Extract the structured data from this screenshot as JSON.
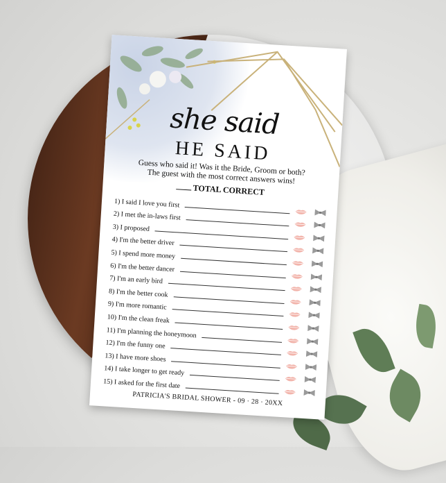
{
  "card": {
    "title_script": "she said",
    "title_caps": "HE SAID",
    "intro_line1": "Guess who said it! Was it the Bride, Groom or both?",
    "intro_line2": "The guest with the most correct answers wins!",
    "total_label": "TOTAL CORRECT",
    "questions": [
      "1) I said I love you first",
      "2) I met the in-laws first",
      "3) I proposed",
      "4) I'm the better driver",
      "5) I spend more money",
      "6) I'm the better dancer",
      "7) I'm an early bird",
      "8) I'm the better cook",
      "9) I'm more romantic",
      "10) I'm the clean freak",
      "11) I'm planning the honeymoon",
      "12) I'm the funny one",
      "13) I have more shoes",
      "14) I take longer to get ready",
      "15) I asked for the first date"
    ],
    "bride_icon": "lips-icon",
    "groom_icon": "bow-tie-icon",
    "footer": "PATRICIA'S BRIDAL SHOWER - 09 · 28 · 20XX"
  },
  "colors": {
    "gold": "#c9b27a",
    "lips": "#f2b4ab",
    "bow": "#9a9a9a",
    "wash": "#c9d3e6"
  }
}
